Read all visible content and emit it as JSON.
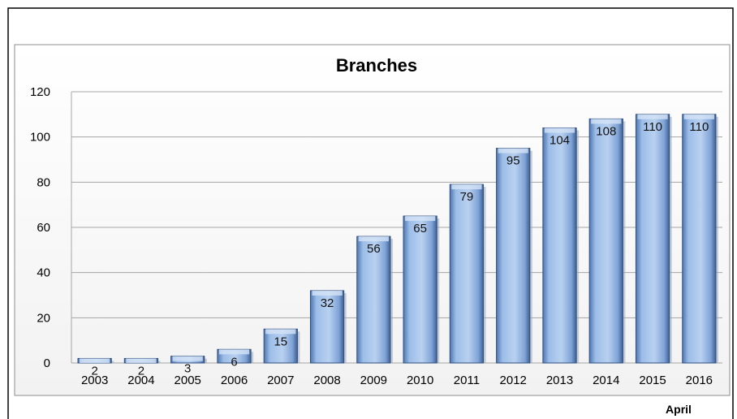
{
  "chart_data": {
    "type": "bar",
    "title": "Branches",
    "categories": [
      "2003",
      "2004",
      "2005",
      "2006",
      "2007",
      "2008",
      "2009",
      "2010",
      "2011",
      "2012",
      "2013",
      "2014",
      "2015",
      "2016"
    ],
    "values": [
      2,
      2,
      3,
      6,
      15,
      32,
      56,
      65,
      79,
      95,
      104,
      108,
      110,
      110
    ],
    "data_labels": [
      "2",
      "2",
      "3",
      "6",
      "15",
      "32",
      "56",
      "65",
      "79",
      "95",
      "104",
      "108",
      "110",
      "110"
    ],
    "y_ticks": [
      "0",
      "20",
      "40",
      "60",
      "80",
      "100",
      "120"
    ],
    "ylim": [
      0,
      120
    ],
    "xlabel": "",
    "ylabel": "",
    "grid": true,
    "legend": "none",
    "note": "April",
    "colors": {
      "bar": "#8db3e2",
      "bar_edge": "#2f4f7f",
      "grid": "#a6a6a6",
      "border": "#000000"
    }
  }
}
